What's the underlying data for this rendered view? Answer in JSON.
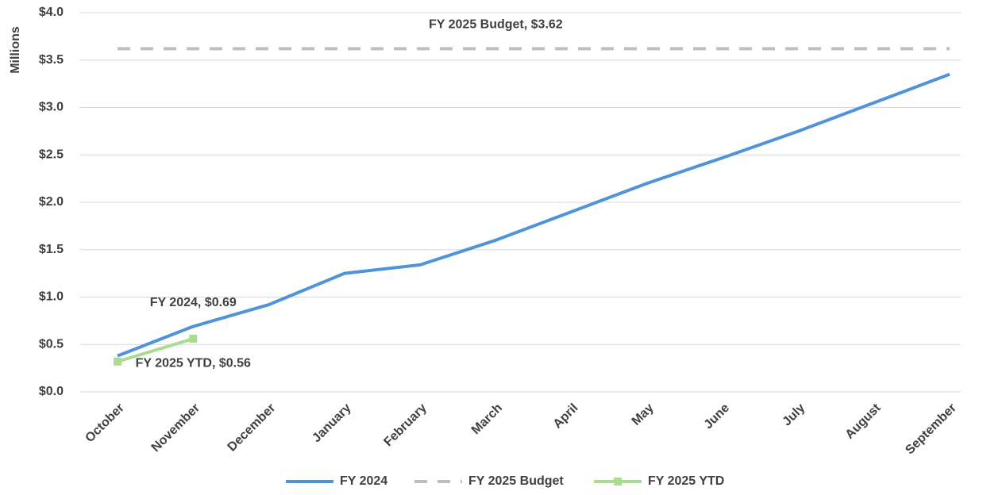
{
  "chart_data": {
    "type": "line",
    "y_axis_label": "Millions",
    "categories": [
      "October",
      "November",
      "December",
      "January",
      "February",
      "March",
      "April",
      "May",
      "June",
      "July",
      "August",
      "September"
    ],
    "series": [
      {
        "name": "FY 2024",
        "color": "#4f93d8",
        "style": "solid",
        "marker": false,
        "values": [
          0.38,
          0.69,
          0.92,
          1.25,
          1.34,
          1.6,
          1.9,
          2.2,
          2.47,
          2.75,
          3.05,
          3.35
        ],
        "value_labels": [
          null,
          "FY 2024, $0.69",
          null,
          null,
          null,
          null,
          null,
          null,
          null,
          null,
          null,
          null
        ]
      },
      {
        "name": "FY 2025 Budget",
        "color": "#bfbfbf",
        "style": "dashed",
        "marker": false,
        "values": [
          3.62,
          3.62,
          3.62,
          3.62,
          3.62,
          3.62,
          3.62,
          3.62,
          3.62,
          3.62,
          3.62,
          3.62
        ],
        "value_labels": [
          null,
          null,
          null,
          null,
          null,
          "FY 2025 Budget, $3.62",
          null,
          null,
          null,
          null,
          null,
          null
        ]
      },
      {
        "name": "FY 2025 YTD",
        "color": "#a9dc8f",
        "style": "solid",
        "marker": true,
        "values": [
          0.32,
          0.56,
          null,
          null,
          null,
          null,
          null,
          null,
          null,
          null,
          null,
          null
        ],
        "value_labels": [
          null,
          "FY 2025 YTD, $0.56",
          null,
          null,
          null,
          null,
          null,
          null,
          null,
          null,
          null,
          null
        ]
      }
    ],
    "ylim": [
      0,
      4
    ],
    "yticks": [
      {
        "value": 0,
        "label": "$0.0"
      },
      {
        "value": 0.5,
        "label": "$0.5"
      },
      {
        "value": 1,
        "label": "$1.0"
      },
      {
        "value": 1.5,
        "label": "$1.5"
      },
      {
        "value": 2,
        "label": "$2.0"
      },
      {
        "value": 2.5,
        "label": "$2.5"
      },
      {
        "value": 3,
        "label": "$3.0"
      },
      {
        "value": 3.5,
        "label": "$3.5"
      },
      {
        "value": 4,
        "label": "$4.0"
      }
    ],
    "grid": true,
    "legend": "bottom"
  }
}
